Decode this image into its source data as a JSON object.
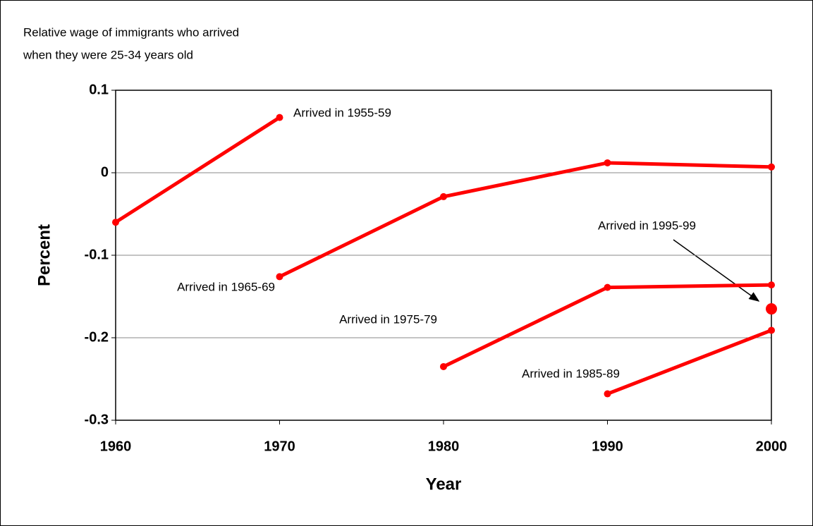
{
  "chart_data": {
    "type": "line",
    "title_lines": [
      "Relative wage of immigrants who arrived",
      "when they were 25-34 years old"
    ],
    "x_label": "Year",
    "y_label": "Percent",
    "xlim": [
      1960,
      2000
    ],
    "xticks": [
      1960,
      1970,
      1980,
      1990,
      2000
    ],
    "ylim": [
      -0.3,
      0.1
    ],
    "yticks": [
      0.1,
      0,
      -0.1,
      -0.2,
      -0.3
    ],
    "grid": true,
    "series": [
      {
        "name": "Arrived in 1955-59",
        "color": "#ff0000",
        "x": [
          1960,
          1970
        ],
        "values": [
          -0.06,
          0.067
        ]
      },
      {
        "name": "Arrived in 1965-69",
        "color": "#ff0000",
        "x": [
          1970,
          1980,
          1990,
          2000
        ],
        "values": [
          -0.126,
          -0.029,
          0.012,
          0.007
        ]
      },
      {
        "name": "Arrived in 1975-79",
        "color": "#ff0000",
        "x": [
          1980,
          1990,
          2000
        ],
        "values": [
          -0.235,
          -0.139,
          -0.136
        ]
      },
      {
        "name": "Arrived in 1985-89",
        "color": "#ff0000",
        "x": [
          1990,
          2000
        ],
        "values": [
          -0.268,
          -0.191
        ]
      },
      {
        "name": "Arrived in 1995-99",
        "color": "#ff0000",
        "x": [
          2000
        ],
        "values": [
          -0.165
        ]
      }
    ]
  }
}
